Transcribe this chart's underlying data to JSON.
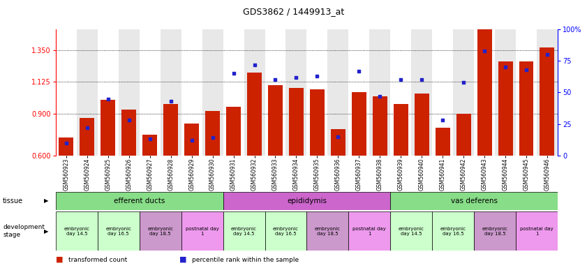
{
  "title": "GDS3862 / 1449913_at",
  "samples": [
    "GSM560923",
    "GSM560924",
    "GSM560925",
    "GSM560926",
    "GSM560927",
    "GSM560928",
    "GSM560929",
    "GSM560930",
    "GSM560931",
    "GSM560932",
    "GSM560933",
    "GSM560934",
    "GSM560935",
    "GSM560936",
    "GSM560937",
    "GSM560938",
    "GSM560939",
    "GSM560940",
    "GSM560941",
    "GSM560942",
    "GSM560943",
    "GSM560944",
    "GSM560945",
    "GSM560946"
  ],
  "red_values": [
    0.73,
    0.87,
    1.0,
    0.93,
    0.75,
    0.97,
    0.83,
    0.92,
    0.95,
    1.19,
    1.1,
    1.08,
    1.07,
    0.79,
    1.05,
    1.02,
    0.97,
    1.04,
    0.8,
    0.9,
    1.5,
    1.27,
    1.27,
    1.37
  ],
  "blue_values": [
    10,
    22,
    45,
    28,
    13,
    43,
    12,
    14,
    65,
    72,
    60,
    62,
    63,
    15,
    67,
    47,
    60,
    60,
    28,
    58,
    83,
    70,
    68,
    80
  ],
  "ylim_left": [
    0.6,
    1.5
  ],
  "ylim_right": [
    0,
    100
  ],
  "yticks_left": [
    0.6,
    0.9,
    1.125,
    1.35
  ],
  "yticks_right": [
    0,
    25,
    50,
    75,
    100
  ],
  "bar_color": "#cc2200",
  "dot_color": "#2222cc",
  "background_color": "#ffffff",
  "plot_bg_even": "#ffffff",
  "plot_bg_odd": "#e8e8e8",
  "tissue_groups": [
    {
      "label": "efferent ducts",
      "start": 0,
      "end": 7,
      "color": "#88dd88"
    },
    {
      "label": "epididymis",
      "start": 8,
      "end": 15,
      "color": "#cc66cc"
    },
    {
      "label": "vas deferens",
      "start": 16,
      "end": 23,
      "color": "#88dd88"
    }
  ],
  "dev_stages": [
    {
      "label": "embryonic\nday 14.5",
      "start": 0,
      "end": 1,
      "color": "#ccffcc"
    },
    {
      "label": "embryonic\nday 16.5",
      "start": 2,
      "end": 3,
      "color": "#ccffcc"
    },
    {
      "label": "embryonic\nday 18.5",
      "start": 4,
      "end": 5,
      "color": "#cc99cc"
    },
    {
      "label": "postnatal day\n1",
      "start": 6,
      "end": 7,
      "color": "#ee99ee"
    },
    {
      "label": "embryonic\nday 14.5",
      "start": 8,
      "end": 9,
      "color": "#ccffcc"
    },
    {
      "label": "embryonic\nday 16.5",
      "start": 10,
      "end": 11,
      "color": "#ccffcc"
    },
    {
      "label": "embryonic\nday 18.5",
      "start": 12,
      "end": 13,
      "color": "#cc99cc"
    },
    {
      "label": "postnatal day\n1",
      "start": 14,
      "end": 15,
      "color": "#ee99ee"
    },
    {
      "label": "embryonic\nday 14.5",
      "start": 16,
      "end": 17,
      "color": "#ccffcc"
    },
    {
      "label": "embryonic\nday 16.5",
      "start": 18,
      "end": 19,
      "color": "#ccffcc"
    },
    {
      "label": "embryonic\nday 18.5",
      "start": 20,
      "end": 21,
      "color": "#cc99cc"
    },
    {
      "label": "postnatal day\n1",
      "start": 22,
      "end": 23,
      "color": "#ee99ee"
    }
  ],
  "legend_red_label": "transformed count",
  "legend_blue_label": "percentile rank within the sample"
}
